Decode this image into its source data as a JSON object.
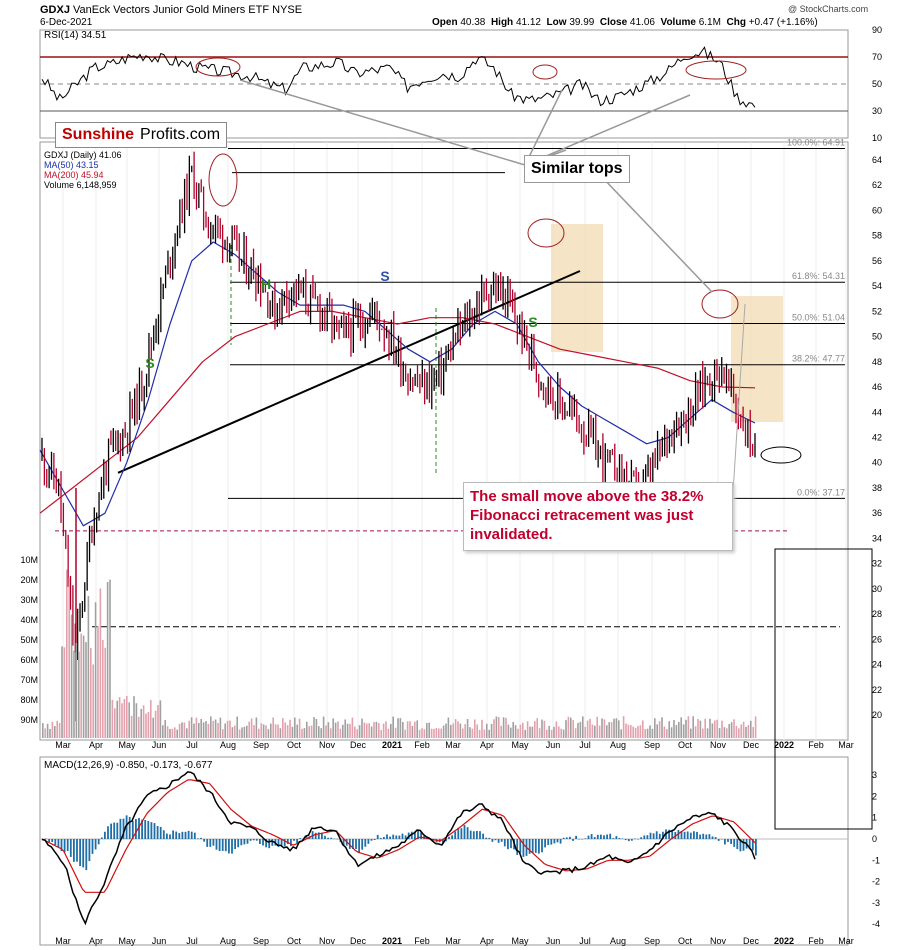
{
  "header": {
    "symbol": "GDXJ",
    "name": "VanEck Vectors Junior Gold Miners ETF",
    "exchange": "NYSE",
    "date": "6-Dec-2021",
    "watermark": "@ StockCharts.com",
    "ohlc": [
      {
        "label": "Open",
        "value": "40.38"
      },
      {
        "label": "High",
        "value": "41.12"
      },
      {
        "label": "Low",
        "value": "39.99"
      },
      {
        "label": "Close",
        "value": "41.06"
      },
      {
        "label": "Volume",
        "value": "6.1M"
      },
      {
        "label": "Chg",
        "value": "+0.47 (+1.16%)"
      }
    ]
  },
  "logo": {
    "part1": "Sunshine",
    "part2": "Profits.com"
  },
  "annotations": {
    "similar_tops": "Similar tops",
    "fib_note_lines": [
      "The small move above the 38.2%",
      "Fibonacci retracement was just",
      "invalidated."
    ],
    "pattern_labels": [
      {
        "text": "S",
        "color": "#2a8a1f"
      },
      {
        "text": "H",
        "color": "#2a8a1f"
      },
      {
        "text": "S",
        "color": "#3050b0"
      },
      {
        "text": "S",
        "color": "#2a8a1f"
      }
    ]
  },
  "colors": {
    "price_up": "#000000",
    "price_down": "#b0002a",
    "ma50": "#1f2ea8",
    "ma200": "#c0102a",
    "rsi_line": "#000000",
    "rsi_70": "#9a1010",
    "macd": "#000000",
    "signal": "#d01010",
    "hist": "#1e6fa8",
    "fib_box": "#f3ddb8",
    "green": "#2a8a1f"
  },
  "chart_data": [
    {
      "type": "line",
      "title": "RSI(14) 34.51",
      "ylim": [
        10,
        90
      ],
      "yticks": [
        "90",
        "70",
        "50",
        "30",
        "10"
      ],
      "reference_levels": [
        70,
        50,
        30
      ],
      "series": [
        {
          "name": "RSI(14)",
          "values": [
            55,
            38,
            50,
            62,
            65,
            70,
            72,
            68,
            66,
            62,
            60,
            58,
            56,
            50,
            46,
            62,
            64,
            66,
            58,
            60,
            62,
            48,
            54,
            58,
            56,
            70,
            62,
            42,
            38,
            40,
            44,
            50,
            38,
            40,
            46,
            52,
            60,
            72,
            74,
            66,
            40,
            34
          ]
        }
      ]
    },
    {
      "type": "line",
      "title": "GDXJ (Daily) 41.06",
      "legend": [
        "GDXJ (Daily) 41.06",
        "MA(50) 43.15",
        "MA(200) 45.94",
        "Volume 6,148,959"
      ],
      "x_ticks": [
        "Mar",
        "Apr",
        "May",
        "Jun",
        "Jul",
        "Aug",
        "Sep",
        "Oct",
        "Nov",
        "Dec",
        "2021",
        "Feb",
        "Mar",
        "Apr",
        "May",
        "Jun",
        "Jul",
        "Aug",
        "Sep",
        "Oct",
        "Nov",
        "Dec",
        "2022",
        "Feb",
        "Mar"
      ],
      "ylim": [
        19,
        66
      ],
      "yticks": [
        "64",
        "62",
        "60",
        "58",
        "56",
        "54",
        "52",
        "50",
        "48",
        "46",
        "44",
        "42",
        "40",
        "38",
        "36",
        "34",
        "32",
        "30",
        "28",
        "26",
        "24",
        "22",
        "20"
      ],
      "series": [
        {
          "name": "GDXJ (Daily)",
          "values": [
            40.5,
            38,
            25,
            35,
            40.5,
            42.5,
            46,
            52,
            58,
            63,
            59,
            58,
            56,
            55,
            52,
            54,
            53,
            52,
            50,
            51,
            52,
            50,
            47,
            46,
            47,
            50,
            52,
            54,
            53,
            50,
            47,
            45,
            44,
            42,
            40,
            39,
            37.5,
            40,
            43,
            44,
            46.5,
            47.5,
            44,
            41
          ]
        },
        {
          "name": "MA(50)",
          "values": [
            41,
            38,
            35,
            36,
            40,
            45,
            51,
            56,
            57.5,
            56.5,
            55,
            53.5,
            52.5,
            52.5,
            52.5,
            52,
            50.5,
            49,
            48,
            49,
            51,
            52,
            51,
            48,
            46,
            44.5,
            43.5,
            42.5,
            41.5,
            42,
            43.5,
            45,
            44,
            43.15
          ]
        },
        {
          "name": "MA(200)",
          "values": [
            36,
            38,
            40,
            42,
            45,
            48,
            50,
            51,
            52,
            52,
            51.5,
            51,
            51.5,
            51.5,
            51,
            50,
            49,
            48.5,
            48,
            47.5,
            46.5,
            46,
            45.94
          ]
        }
      ],
      "fibonacci": [
        {
          "label": "100.0%: 64.91",
          "value": 64.91
        },
        {
          "label": "61.8%: 54.31",
          "value": 54.31
        },
        {
          "label": "50.0%: 51.04",
          "value": 51.04
        },
        {
          "label": "38.2%: 47.77",
          "value": 47.77
        },
        {
          "label": "0.0%: 37.17",
          "value": 37.17
        }
      ],
      "horizontal_lines": [
        34.6,
        27
      ],
      "volume_ticks": [
        "90M",
        "80M",
        "70M",
        "60M",
        "50M",
        "40M",
        "30M",
        "20M",
        "10M"
      ]
    },
    {
      "type": "line",
      "title": "MACD(12,26,9) -0.850, -0.173, -0.677",
      "ylim": [
        -4.3,
        3.7
      ],
      "yticks": [
        "3",
        "2",
        "1",
        "0",
        "-1",
        "-2",
        "-3",
        "-4"
      ],
      "series": [
        {
          "name": "MACD",
          "values": [
            0,
            -1,
            -4,
            -2,
            0.5,
            2,
            2.5,
            3.2,
            2.2,
            0.8,
            0.5,
            -0.2,
            -0.5,
            0.6,
            0.4,
            -1.2,
            -0.8,
            -0.3,
            0.4,
            -0.3,
            1.2,
            1.6,
            0.8,
            -1.2,
            -1.6,
            -1.5,
            -1.3,
            -0.8,
            -1.2,
            -0.5,
            0.4,
            1,
            1.2,
            0.4,
            -0.85
          ]
        },
        {
          "name": "Signal",
          "values": [
            0,
            -0.5,
            -2.5,
            -2.5,
            -0.5,
            1.2,
            2.2,
            2.8,
            2.6,
            1.4,
            0.6,
            0.2,
            -0.3,
            0.2,
            0.4,
            -0.6,
            -0.9,
            -0.5,
            0.1,
            -0.1,
            0.6,
            1.4,
            1.1,
            -0.3,
            -1.2,
            -1.5,
            -1.4,
            -1,
            -1,
            -0.8,
            0,
            0.7,
            1.1,
            0.8,
            -0.173
          ]
        }
      ]
    }
  ]
}
